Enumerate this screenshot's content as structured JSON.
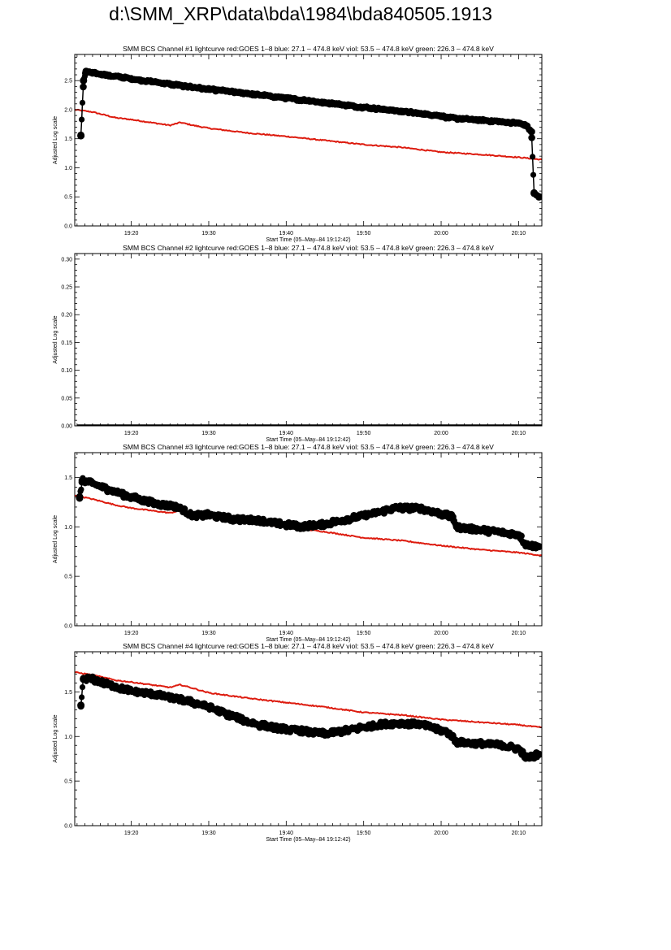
{
  "page": {
    "title": "d:\\SMM_XRP\\data\\bda\\1984\\bda840505.1913"
  },
  "colors": {
    "goes": "#dd1b0e",
    "bcs": "#000000",
    "axis": "#000000"
  },
  "chart_data": [
    {
      "type": "line",
      "title": "SMM BCS Channel #1 lightcurve  red:GOES 1–8  blue: 27.1 – 474.8 keV  viol: 53.5 – 474.8 keV  green: 226.3 – 474.8 keV",
      "xlabel": "Start Time (05–May–84 19:12:42)",
      "ylabel": "Adjusted Log scale",
      "xlim": [
        "19:12:42",
        "20:13:00"
      ],
      "ylim": [
        0,
        2.95
      ],
      "x_ticks": [
        "19:20",
        "19:30",
        "19:40",
        "19:50",
        "20:00",
        "20:10"
      ],
      "y_ticks": [
        "0.0",
        "0.5",
        "1.0",
        "1.5",
        "2.0",
        "2.5"
      ],
      "y_tick_values": [
        0,
        0.5,
        1.0,
        1.5,
        2.0,
        2.5
      ],
      "series": [
        {
          "color": "#dd1b0e",
          "style": "line",
          "points": [
            [
              "19:12:42",
              2.0
            ],
            [
              "19:15:00",
              1.96
            ],
            [
              "19:18:00",
              1.86
            ],
            [
              "19:20:00",
              1.83
            ],
            [
              "19:25:00",
              1.73
            ],
            [
              "19:26:20",
              1.78
            ],
            [
              "19:28:00",
              1.73
            ],
            [
              "19:30:00",
              1.68
            ],
            [
              "19:35:00",
              1.6
            ],
            [
              "19:40:00",
              1.54
            ],
            [
              "19:45:00",
              1.47
            ],
            [
              "19:50:00",
              1.4
            ],
            [
              "19:55:00",
              1.35
            ],
            [
              "20:00:00",
              1.27
            ],
            [
              "20:05:00",
              1.23
            ],
            [
              "20:10:00",
              1.18
            ],
            [
              "20:13:00",
              1.14
            ]
          ]
        },
        {
          "color": "#000000",
          "style": "line-with-dots",
          "points": [
            [
              "19:13:30",
              1.55
            ],
            [
              "19:13:50",
              2.5
            ],
            [
              "19:14:10",
              2.66
            ],
            [
              "19:15:00",
              2.63
            ],
            [
              "19:20:00",
              2.53
            ],
            [
              "19:25:00",
              2.44
            ],
            [
              "19:30:00",
              2.35
            ],
            [
              "19:35:00",
              2.28
            ],
            [
              "19:40:00",
              2.2
            ],
            [
              "19:45:00",
              2.12
            ],
            [
              "19:50:00",
              2.04
            ],
            [
              "19:55:00",
              1.97
            ],
            [
              "20:00:00",
              1.89
            ],
            [
              "20:01:00",
              1.86
            ],
            [
              "20:05:00",
              1.82
            ],
            [
              "20:10:00",
              1.77
            ],
            [
              "20:11:00",
              1.72
            ],
            [
              "20:11:40",
              1.62
            ],
            [
              "20:12:00",
              0.56
            ],
            [
              "20:12:40",
              0.5
            ]
          ]
        }
      ]
    },
    {
      "type": "line",
      "title": "SMM BCS Channel #2 lightcurve  red:GOES 1–8  blue: 27.1 – 474.8 keV  viol: 53.5 – 474.8 keV  green: 226.3 – 474.8 keV",
      "xlabel": "Start Time (05–May–84 19:12:42)",
      "ylabel": "Adjusted Log scale",
      "xlim": [
        "19:12:42",
        "20:13:00"
      ],
      "ylim": [
        0,
        0.31
      ],
      "x_ticks": [
        "19:20",
        "19:30",
        "19:40",
        "19:50",
        "20:00",
        "20:10"
      ],
      "y_ticks": [
        "0.00",
        "0.05",
        "0.10",
        "0.15",
        "0.20",
        "0.25",
        "0.30"
      ],
      "y_tick_values": [
        0,
        0.05,
        0.1,
        0.15,
        0.2,
        0.25,
        0.3
      ],
      "series": [
        {
          "color": "#000000",
          "style": "line",
          "points": [
            [
              "19:13:00",
              0.0
            ],
            [
              "20:13:00",
              0.0
            ]
          ]
        }
      ]
    },
    {
      "type": "line",
      "title": "SMM BCS Channel #3 lightcurve  red:GOES 1–8  blue: 27.1 – 474.8 keV  viol: 53.5 – 474.8 keV  green: 226.3 – 474.8 keV",
      "xlabel": "Start Time (05–May–84 19:12:42)",
      "ylabel": "Adjusted Log scale",
      "xlim": [
        "19:12:42",
        "20:13:00"
      ],
      "ylim": [
        0,
        1.75
      ],
      "x_ticks": [
        "19:20",
        "19:30",
        "19:40",
        "19:50",
        "20:00",
        "20:10"
      ],
      "y_ticks": [
        "0.0",
        "0.5",
        "1.0",
        "1.5"
      ],
      "y_tick_values": [
        0,
        0.5,
        1.0,
        1.5
      ],
      "series": [
        {
          "color": "#dd1b0e",
          "style": "line",
          "points": [
            [
              "19:12:42",
              1.32
            ],
            [
              "19:15:00",
              1.28
            ],
            [
              "19:18:00",
              1.22
            ],
            [
              "19:20:00",
              1.19
            ],
            [
              "19:25:00",
              1.14
            ],
            [
              "19:26:30",
              1.17
            ],
            [
              "19:28:00",
              1.13
            ],
            [
              "19:30:00",
              1.1
            ],
            [
              "19:35:00",
              1.04
            ],
            [
              "19:40:00",
              1.0
            ],
            [
              "19:45:00",
              0.95
            ],
            [
              "19:50:00",
              0.89
            ],
            [
              "19:55:00",
              0.86
            ],
            [
              "20:00:00",
              0.81
            ],
            [
              "20:05:00",
              0.77
            ],
            [
              "20:10:00",
              0.74
            ],
            [
              "20:13:00",
              0.71
            ]
          ]
        },
        {
          "color": "#000000",
          "style": "line-with-dots",
          "points": [
            [
              "19:13:20",
              1.29
            ],
            [
              "19:13:40",
              1.47
            ],
            [
              "19:15:00",
              1.44
            ],
            [
              "19:17:00",
              1.38
            ],
            [
              "19:20:00",
              1.3
            ],
            [
              "19:23:00",
              1.24
            ],
            [
              "19:26:00",
              1.2
            ],
            [
              "19:28:00",
              1.11
            ],
            [
              "19:30:00",
              1.12
            ],
            [
              "19:33:00",
              1.08
            ],
            [
              "19:36:00",
              1.07
            ],
            [
              "19:39:00",
              1.03
            ],
            [
              "19:42:00",
              1.0
            ],
            [
              "19:45:00",
              1.03
            ],
            [
              "19:48:00",
              1.08
            ],
            [
              "19:51:00",
              1.13
            ],
            [
              "19:54:00",
              1.19
            ],
            [
              "19:57:00",
              1.19
            ],
            [
              "20:00:00",
              1.13
            ],
            [
              "20:01:30",
              1.1
            ],
            [
              "20:02:00",
              1.0
            ],
            [
              "20:05:00",
              0.97
            ],
            [
              "20:08:00",
              0.94
            ],
            [
              "20:10:00",
              0.92
            ],
            [
              "20:11:00",
              0.82
            ],
            [
              "20:12:40",
              0.8
            ]
          ]
        }
      ]
    },
    {
      "type": "line",
      "title": "SMM BCS Channel #4 lightcurve  red:GOES 1–8  blue: 27.1 – 474.8 keV  viol: 53.5 – 474.8 keV  green: 226.3 – 474.8 keV",
      "xlabel": "Start Time (05–May–84 19:12:42)",
      "ylabel": "Adjusted Log scale",
      "xlim": [
        "19:12:42",
        "20:13:00"
      ],
      "ylim": [
        0,
        1.95
      ],
      "x_ticks": [
        "19:20",
        "19:30",
        "19:40",
        "19:50",
        "20:00",
        "20:10"
      ],
      "y_ticks": [
        "0.0",
        "0.5",
        "1.0",
        "1.5"
      ],
      "y_tick_values": [
        0,
        0.5,
        1.0,
        1.5
      ],
      "series": [
        {
          "color": "#dd1b0e",
          "style": "line",
          "points": [
            [
              "19:12:42",
              1.72
            ],
            [
              "19:15:00",
              1.69
            ],
            [
              "19:18:00",
              1.63
            ],
            [
              "19:20:00",
              1.61
            ],
            [
              "19:25:00",
              1.55
            ],
            [
              "19:26:20",
              1.58
            ],
            [
              "19:28:00",
              1.54
            ],
            [
              "19:30:00",
              1.49
            ],
            [
              "19:35:00",
              1.43
            ],
            [
              "19:40:00",
              1.38
            ],
            [
              "19:45:00",
              1.33
            ],
            [
              "19:50:00",
              1.27
            ],
            [
              "19:55:00",
              1.24
            ],
            [
              "20:00:00",
              1.19
            ],
            [
              "20:05:00",
              1.16
            ],
            [
              "20:10:00",
              1.13
            ],
            [
              "20:13:00",
              1.1
            ]
          ]
        },
        {
          "color": "#000000",
          "style": "line-with-dots",
          "points": [
            [
              "19:13:30",
              1.35
            ],
            [
              "19:13:50",
              1.65
            ],
            [
              "19:15:00",
              1.64
            ],
            [
              "19:17:00",
              1.58
            ],
            [
              "19:20:00",
              1.51
            ],
            [
              "19:23:00",
              1.47
            ],
            [
              "19:26:00",
              1.42
            ],
            [
              "19:28:00",
              1.38
            ],
            [
              "19:30:00",
              1.33
            ],
            [
              "19:33:00",
              1.23
            ],
            [
              "19:36:00",
              1.14
            ],
            [
              "19:39:00",
              1.09
            ],
            [
              "19:42:00",
              1.06
            ],
            [
              "19:45:00",
              1.03
            ],
            [
              "19:48:00",
              1.07
            ],
            [
              "19:51:00",
              1.12
            ],
            [
              "19:54:00",
              1.15
            ],
            [
              "19:57:00",
              1.14
            ],
            [
              "20:00:00",
              1.07
            ],
            [
              "20:01:00",
              1.04
            ],
            [
              "20:02:00",
              0.94
            ],
            [
              "20:05:00",
              0.92
            ],
            [
              "20:08:00",
              0.9
            ],
            [
              "20:10:00",
              0.86
            ],
            [
              "20:11:00",
              0.76
            ],
            [
              "20:12:40",
              0.8
            ]
          ]
        }
      ]
    }
  ]
}
